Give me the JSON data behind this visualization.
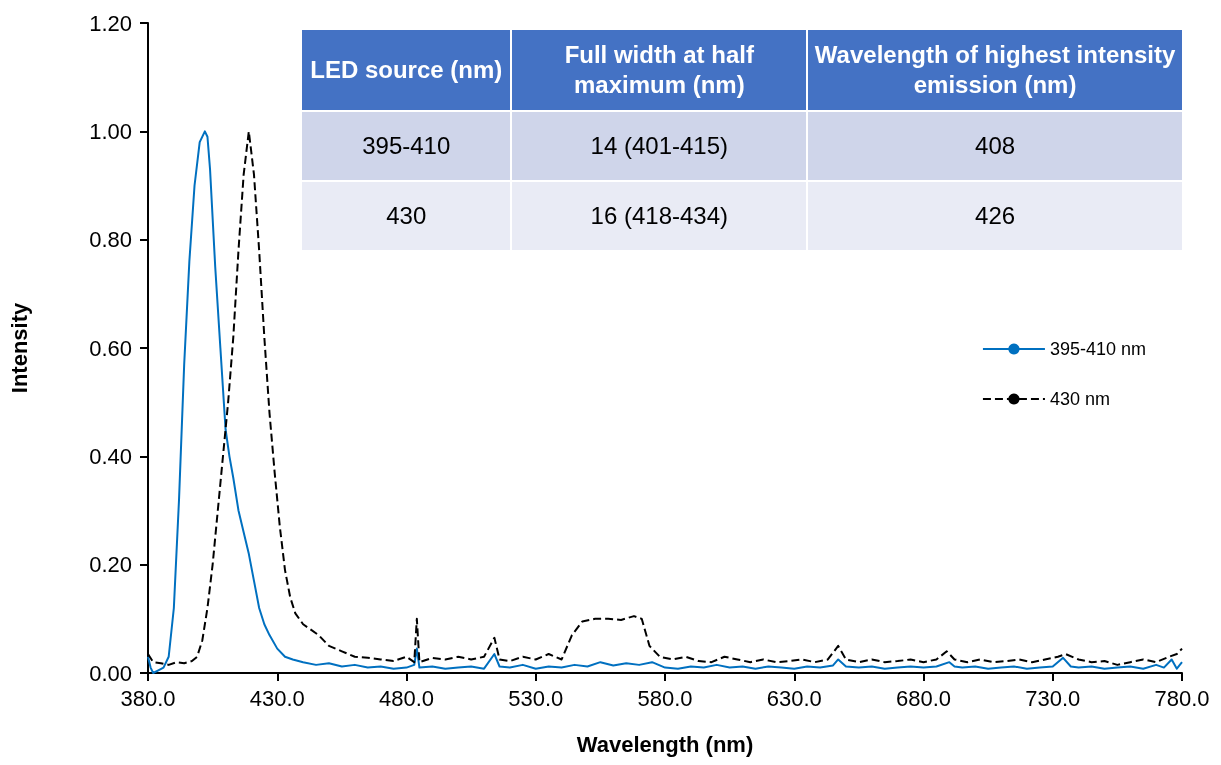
{
  "chart_data": {
    "type": "line",
    "xlabel": "Wavelength (nm)",
    "ylabel": "Intensity",
    "xlim": [
      380,
      780
    ],
    "ylim": [
      0,
      1.2
    ],
    "xticks": [
      {
        "value": 380,
        "label": "380.0"
      },
      {
        "value": 430,
        "label": "430.0"
      },
      {
        "value": 480,
        "label": "480.0"
      },
      {
        "value": 530,
        "label": "530.0"
      },
      {
        "value": 580,
        "label": "580.0"
      },
      {
        "value": 630,
        "label": "630.0"
      },
      {
        "value": 680,
        "label": "680.0"
      },
      {
        "value": 730,
        "label": "730.0"
      },
      {
        "value": 780,
        "label": "780.0"
      }
    ],
    "yticks": [
      {
        "value": 0,
        "label": "0.00"
      },
      {
        "value": 0.2,
        "label": "0.20"
      },
      {
        "value": 0.4,
        "label": "0.40"
      },
      {
        "value": 0.6,
        "label": "0.60"
      },
      {
        "value": 0.8,
        "label": "0.80"
      },
      {
        "value": 1,
        "label": "1.00"
      },
      {
        "value": 1.2,
        "label": "1.20"
      }
    ],
    "grid": false,
    "legend": "right",
    "marker": "none",
    "annotations": [
      "LED source (nm)",
      "Full width at half maximum (nm)",
      "Wavelength of highest intensity emission (nm)",
      "395-410",
      "14 (401-415)",
      "408",
      "430",
      "16 (418-434)",
      "426"
    ],
    "series": [
      {
        "name": "395-410 nm",
        "color": "#0070c0",
        "line_style": "solid",
        "x": [
          380,
          381,
          382,
          384,
          386,
          388,
          390,
          392,
          394,
          396,
          398,
          400,
          402,
          403,
          404,
          406,
          408,
          410,
          411.5,
          413,
          415,
          417,
          419,
          421,
          423,
          425,
          427,
          430,
          433,
          436,
          440,
          445,
          450,
          455,
          460,
          465,
          470,
          475,
          480,
          483,
          484,
          485,
          490,
          495,
          500,
          505,
          510,
          514,
          516,
          520,
          525,
          530,
          535,
          540,
          545,
          550,
          555,
          560,
          565,
          570,
          575,
          580,
          585,
          590,
          595,
          600,
          605,
          610,
          615,
          620,
          625,
          630,
          635,
          640,
          645,
          647,
          650,
          655,
          660,
          665,
          670,
          675,
          680,
          685,
          690,
          692,
          695,
          700,
          705,
          710,
          715,
          720,
          725,
          730,
          734,
          737,
          740,
          745,
          750,
          755,
          760,
          765,
          770,
          773,
          776,
          778,
          780
        ],
        "values": [
          0.03,
          0.01,
          0.0,
          0.005,
          0.01,
          0.03,
          0.12,
          0.32,
          0.57,
          0.76,
          0.9,
          0.98,
          1.0,
          0.99,
          0.93,
          0.75,
          0.6,
          0.45,
          0.4,
          0.36,
          0.3,
          0.26,
          0.22,
          0.17,
          0.12,
          0.09,
          0.07,
          0.045,
          0.03,
          0.025,
          0.02,
          0.015,
          0.018,
          0.012,
          0.015,
          0.01,
          0.012,
          0.008,
          0.01,
          0.015,
          0.045,
          0.01,
          0.012,
          0.008,
          0.01,
          0.012,
          0.008,
          0.035,
          0.012,
          0.01,
          0.015,
          0.008,
          0.012,
          0.01,
          0.015,
          0.012,
          0.02,
          0.014,
          0.018,
          0.015,
          0.02,
          0.01,
          0.008,
          0.012,
          0.01,
          0.015,
          0.01,
          0.012,
          0.008,
          0.012,
          0.01,
          0.008,
          0.012,
          0.01,
          0.014,
          0.025,
          0.012,
          0.01,
          0.012,
          0.008,
          0.01,
          0.012,
          0.01,
          0.012,
          0.02,
          0.012,
          0.01,
          0.012,
          0.008,
          0.01,
          0.012,
          0.008,
          0.01,
          0.012,
          0.028,
          0.012,
          0.01,
          0.012,
          0.008,
          0.01,
          0.012,
          0.008,
          0.015,
          0.01,
          0.025,
          0.008,
          0.02
        ]
      },
      {
        "name": "430 nm",
        "color": "#000000",
        "line_style": "dashed",
        "x": [
          380,
          382,
          385,
          388,
          391,
          394,
          397,
          399,
          401,
          403,
          405,
          407,
          409,
          411,
          413,
          415,
          417,
          419,
          421,
          423,
          425,
          427,
          429,
          431,
          433,
          435,
          437,
          440,
          443,
          446,
          450,
          455,
          460,
          465,
          470,
          475,
          480,
          483,
          484,
          485,
          490,
          495,
          500,
          505,
          510,
          514,
          516,
          520,
          525,
          530,
          535,
          540,
          544,
          548,
          553,
          558,
          563,
          568,
          571,
          574,
          578,
          583,
          588,
          593,
          598,
          603,
          608,
          613,
          618,
          623,
          628,
          633,
          638,
          643,
          647,
          650,
          655,
          660,
          665,
          670,
          675,
          680,
          685,
          689,
          692,
          697,
          702,
          707,
          712,
          717,
          722,
          727,
          732,
          735,
          740,
          745,
          750,
          755,
          760,
          765,
          770,
          775,
          778,
          780
        ],
        "values": [
          0.035,
          0.02,
          0.018,
          0.015,
          0.02,
          0.018,
          0.022,
          0.03,
          0.06,
          0.12,
          0.2,
          0.3,
          0.4,
          0.5,
          0.62,
          0.78,
          0.92,
          1.0,
          0.92,
          0.78,
          0.62,
          0.48,
          0.37,
          0.27,
          0.19,
          0.14,
          0.11,
          0.09,
          0.08,
          0.07,
          0.05,
          0.04,
          0.03,
          0.028,
          0.025,
          0.022,
          0.03,
          0.02,
          0.1,
          0.02,
          0.028,
          0.025,
          0.03,
          0.025,
          0.03,
          0.065,
          0.025,
          0.022,
          0.03,
          0.025,
          0.035,
          0.025,
          0.07,
          0.095,
          0.1,
          0.1,
          0.098,
          0.105,
          0.1,
          0.05,
          0.03,
          0.025,
          0.03,
          0.022,
          0.02,
          0.03,
          0.025,
          0.02,
          0.025,
          0.02,
          0.022,
          0.025,
          0.02,
          0.025,
          0.05,
          0.025,
          0.02,
          0.025,
          0.02,
          0.022,
          0.025,
          0.02,
          0.025,
          0.04,
          0.025,
          0.02,
          0.025,
          0.02,
          0.022,
          0.025,
          0.02,
          0.025,
          0.03,
          0.035,
          0.025,
          0.02,
          0.022,
          0.015,
          0.02,
          0.025,
          0.02,
          0.03,
          0.035,
          0.045
        ]
      }
    ]
  }
}
